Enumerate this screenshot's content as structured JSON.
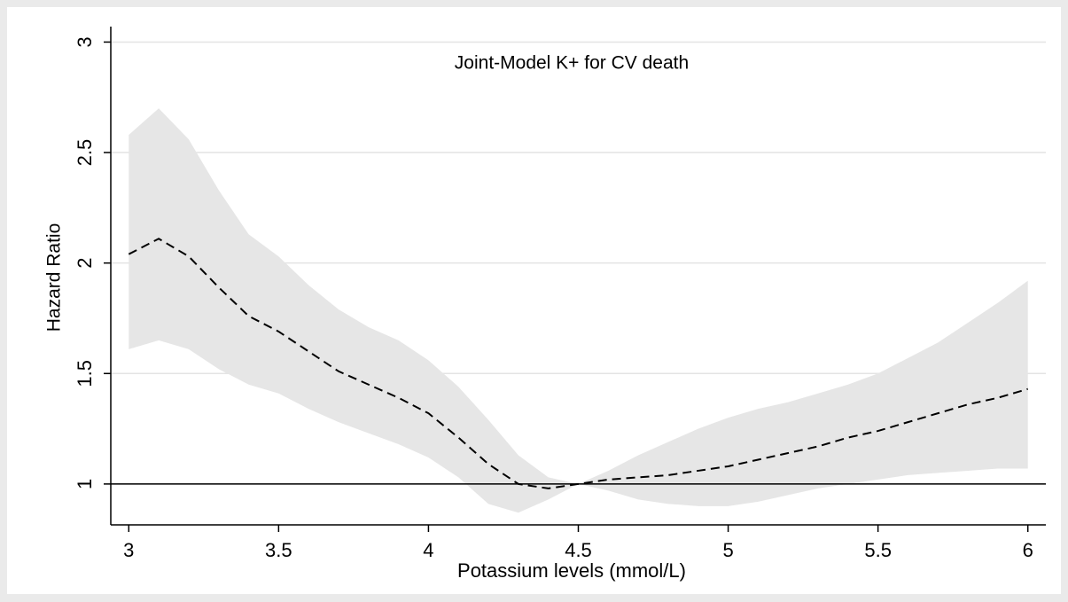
{
  "chart_data": {
    "type": "line",
    "title": "Joint-Model K+ for CV death",
    "x_label": "Potassium levels (mmol/L)",
    "y_label": "Hazard Ratio",
    "x": [
      3.0,
      3.1,
      3.2,
      3.3,
      3.4,
      3.5,
      3.6,
      3.7,
      3.8,
      3.9,
      4.0,
      4.1,
      4.2,
      4.3,
      4.4,
      4.5,
      4.6,
      4.7,
      4.8,
      4.9,
      5.0,
      5.1,
      5.2,
      5.3,
      5.4,
      5.5,
      5.6,
      5.7,
      5.8,
      5.9,
      6.0
    ],
    "values": [
      2.04,
      2.11,
      2.03,
      1.89,
      1.76,
      1.69,
      1.6,
      1.51,
      1.45,
      1.39,
      1.32,
      1.21,
      1.09,
      1.0,
      0.98,
      1.0,
      1.02,
      1.03,
      1.04,
      1.06,
      1.08,
      1.11,
      1.14,
      1.17,
      1.21,
      1.24,
      1.28,
      1.32,
      1.36,
      1.39,
      1.43
    ],
    "upper": [
      2.58,
      2.7,
      2.56,
      2.33,
      2.13,
      2.03,
      1.9,
      1.79,
      1.71,
      1.65,
      1.56,
      1.44,
      1.29,
      1.13,
      1.03,
      1.0,
      1.06,
      1.13,
      1.19,
      1.25,
      1.3,
      1.34,
      1.37,
      1.41,
      1.45,
      1.5,
      1.57,
      1.64,
      1.73,
      1.82,
      1.92
    ],
    "lower": [
      1.61,
      1.65,
      1.61,
      1.52,
      1.45,
      1.41,
      1.34,
      1.28,
      1.23,
      1.18,
      1.12,
      1.03,
      0.91,
      0.87,
      0.93,
      1.0,
      0.97,
      0.93,
      0.91,
      0.9,
      0.9,
      0.92,
      0.95,
      0.98,
      1.0,
      1.02,
      1.04,
      1.05,
      1.06,
      1.07,
      1.07
    ],
    "color": "#000000",
    "band_color": "#e6e6e6",
    "refline": 1,
    "xlim": [
      2.94,
      6.06
    ],
    "ylim": [
      0.815,
      3.07
    ],
    "xticks": [
      3,
      3.5,
      4,
      4.5,
      5,
      5.5,
      6
    ],
    "yticks": [
      1,
      1.5,
      2,
      2.5,
      3
    ],
    "grid": true
  }
}
